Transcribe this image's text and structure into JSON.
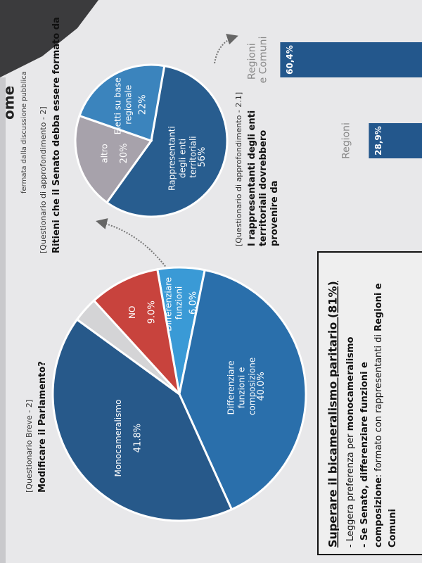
{
  "header": {
    "heading_fragment": "ome",
    "caption_fragment": "fermata dalla discussione pubblica"
  },
  "chart_data": [
    {
      "type": "pie",
      "subtitle": "[Questionario Breve - 2]",
      "title": "Modificare il Parlamento?",
      "categories": [
        "Differenziare funzioni",
        "Differenziare funzioni e composizione",
        "Monocameralismo",
        null,
        "NO"
      ],
      "values": [
        6.0,
        40.0,
        41.8,
        3.2,
        9.0
      ],
      "value_labels": [
        "6.0%",
        "40.0%",
        "41.8%",
        null,
        "9.0%"
      ],
      "colors": [
        "#3a9ad6",
        "#2a6fab",
        "#27598a",
        "#d4d4d6",
        "#c8433d"
      ]
    },
    {
      "type": "pie",
      "subtitle": "[Questionario di approfondimento - 2]",
      "title": "Ritieni che il Senato debba essere formato da",
      "categories": [
        "Rappresentanti degli enti territoriali",
        "altro",
        "Eletti su base regionale"
      ],
      "values": [
        56,
        20,
        22
      ],
      "value_labels": [
        "56%",
        "20%",
        "22%"
      ],
      "colors": [
        "#285d8f",
        "#a7a2ab",
        "#3b84bd"
      ]
    },
    {
      "type": "bar",
      "subtitle": "[Questionario di approfondimento - 2.1]",
      "title": "I rappresentanti degli enti territoriali dovrebbero provenire da",
      "categories": [
        "Regioni",
        "Regioni e Comuni"
      ],
      "values": [
        28.9,
        60.4
      ],
      "value_labels": [
        "28,9%",
        "60,4%"
      ],
      "color": "#23578c"
    }
  ],
  "summary": {
    "title": "Superare il bicameralismo paritario (81%)",
    "lines": [
      [
        {
          "text": "- Leggera preferenza per ",
          "bold": false
        },
        {
          "text": "monocameralismo",
          "bold": true
        }
      ],
      [
        {
          "text": "- Se Senato, ",
          "bold": true
        },
        {
          "text": "differenziare funzioni e",
          "bold": true
        }
      ],
      [
        {
          "text": "composizione",
          "bold": true
        },
        {
          "text": ": formato con rappresentanti di ",
          "bold": false
        },
        {
          "text": "Regioni e",
          "bold": true
        }
      ],
      [
        {
          "text": "Comuni",
          "bold": true
        }
      ]
    ]
  }
}
